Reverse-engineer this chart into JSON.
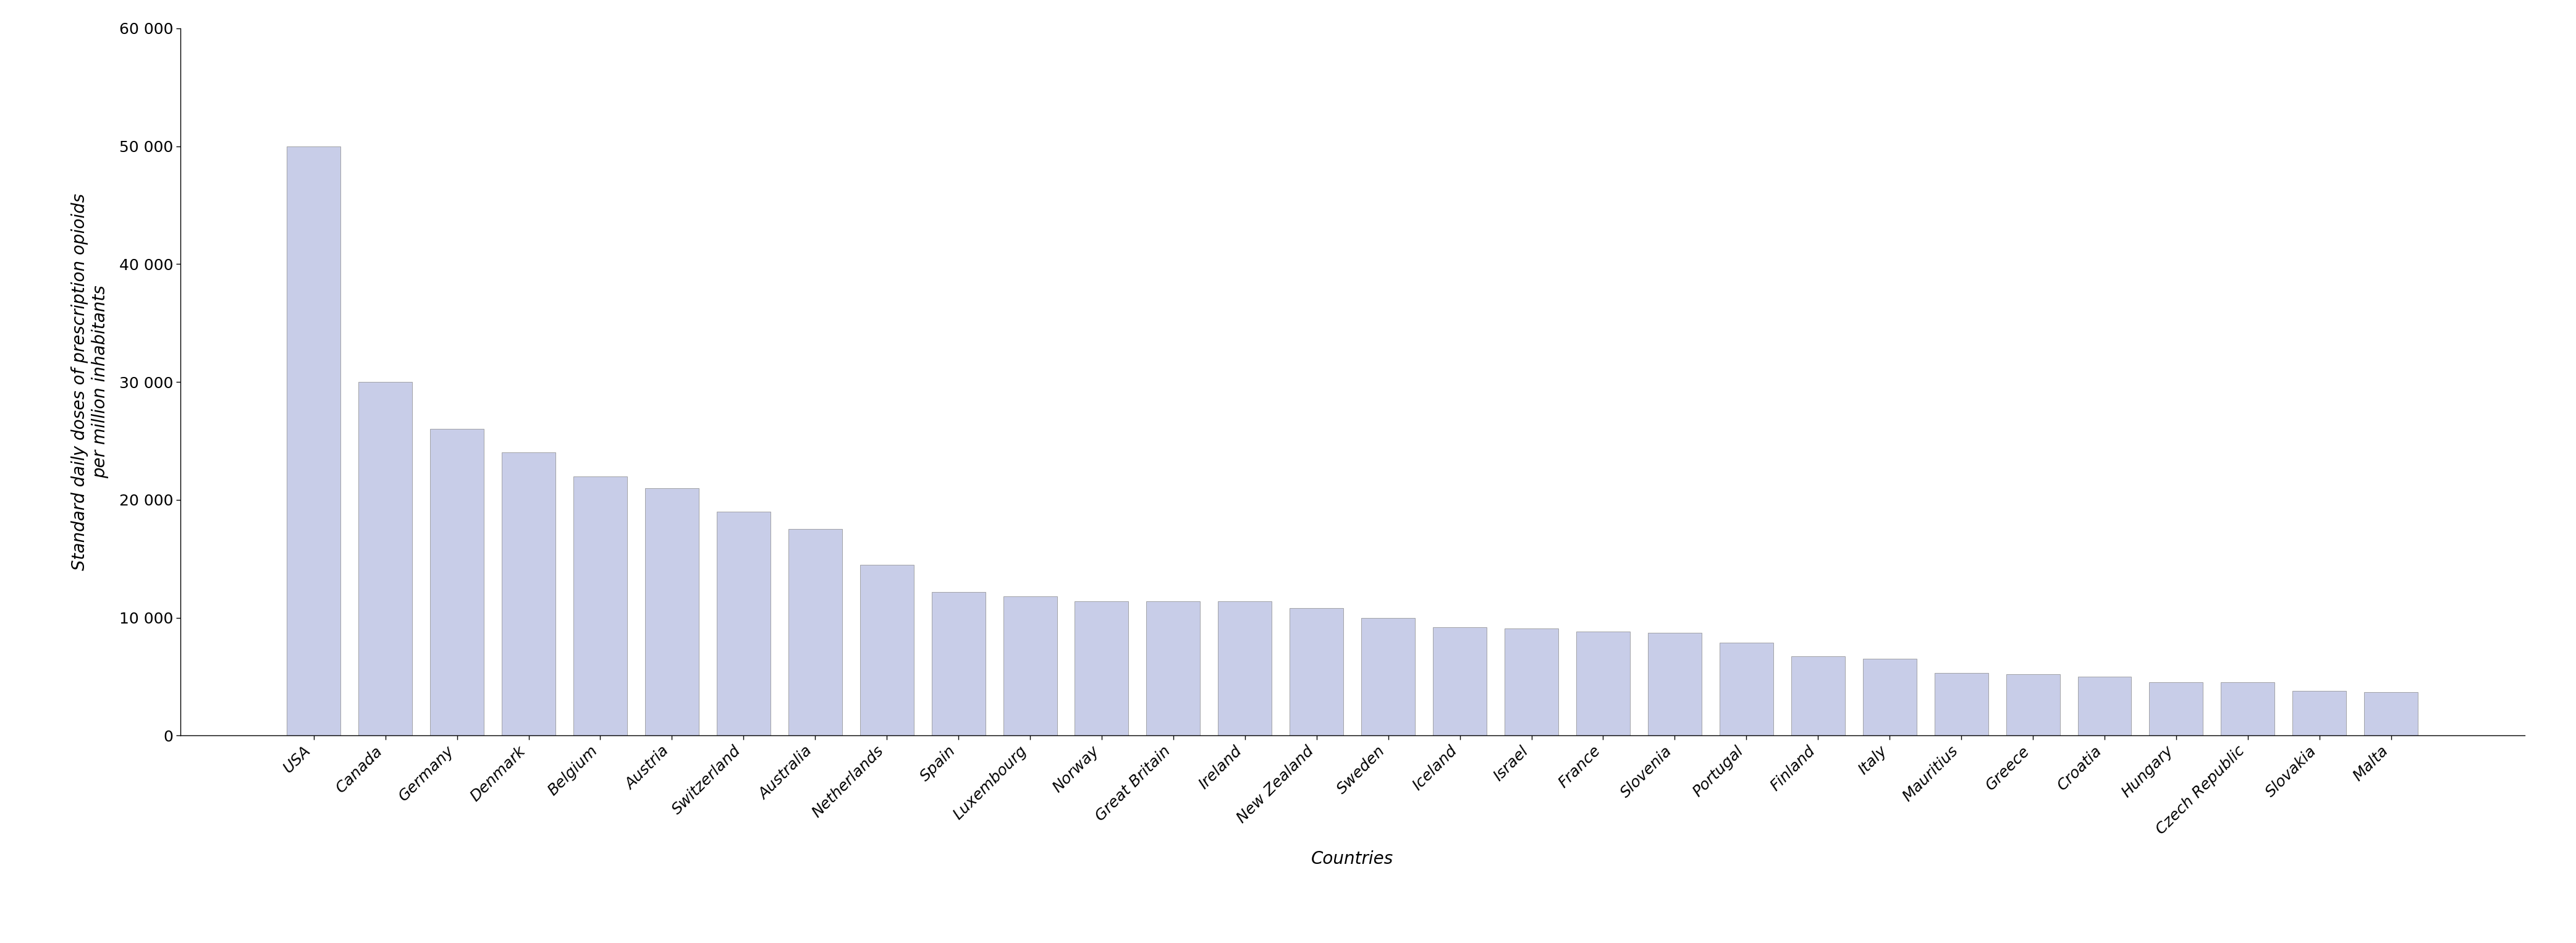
{
  "countries": [
    "USA",
    "Canada",
    "Germany",
    "Denmark",
    "Belgium",
    "Austria",
    "Switzerland",
    "Australia",
    "Netherlands",
    "Spain",
    "Luxembourg",
    "Norway",
    "Great Britain",
    "Ireland",
    "New Zealand",
    "Sweden",
    "Iceland",
    "Israel",
    "France",
    "Slovenia",
    "Portugal",
    "Finland",
    "Italy",
    "Mauritius",
    "Greece",
    "Croatia",
    "Hungary",
    "Czech Republic",
    "Slovakia",
    "Malta"
  ],
  "values": [
    50000,
    30000,
    26000,
    24000,
    22000,
    21000,
    19000,
    17500,
    14500,
    12200,
    11800,
    11400,
    11400,
    11400,
    10800,
    10000,
    9200,
    9100,
    8800,
    8700,
    7900,
    6700,
    6500,
    5300,
    5200,
    5000,
    4500,
    4500,
    3800,
    3700
  ],
  "bar_color": "#c8cde8",
  "bar_edgecolor": "#888888",
  "ylabel_line1": "Standard daily doses of prescription opioids",
  "ylabel_line2": "per million inhabitants",
  "xlabel": "Countries",
  "ylim": [
    0,
    60000
  ],
  "yticks": [
    0,
    10000,
    20000,
    30000,
    40000,
    50000,
    60000
  ],
  "ytick_labels": [
    "0",
    "10 000",
    "20 000",
    "30 000",
    "40 000",
    "50 000",
    "60 000"
  ],
  "background_color": "#ffffff",
  "bar_linewidth": 0.5,
  "spine_color": "#000000",
  "tick_fontsize": 18,
  "label_fontsize": 20,
  "xtick_fontsize": 18
}
